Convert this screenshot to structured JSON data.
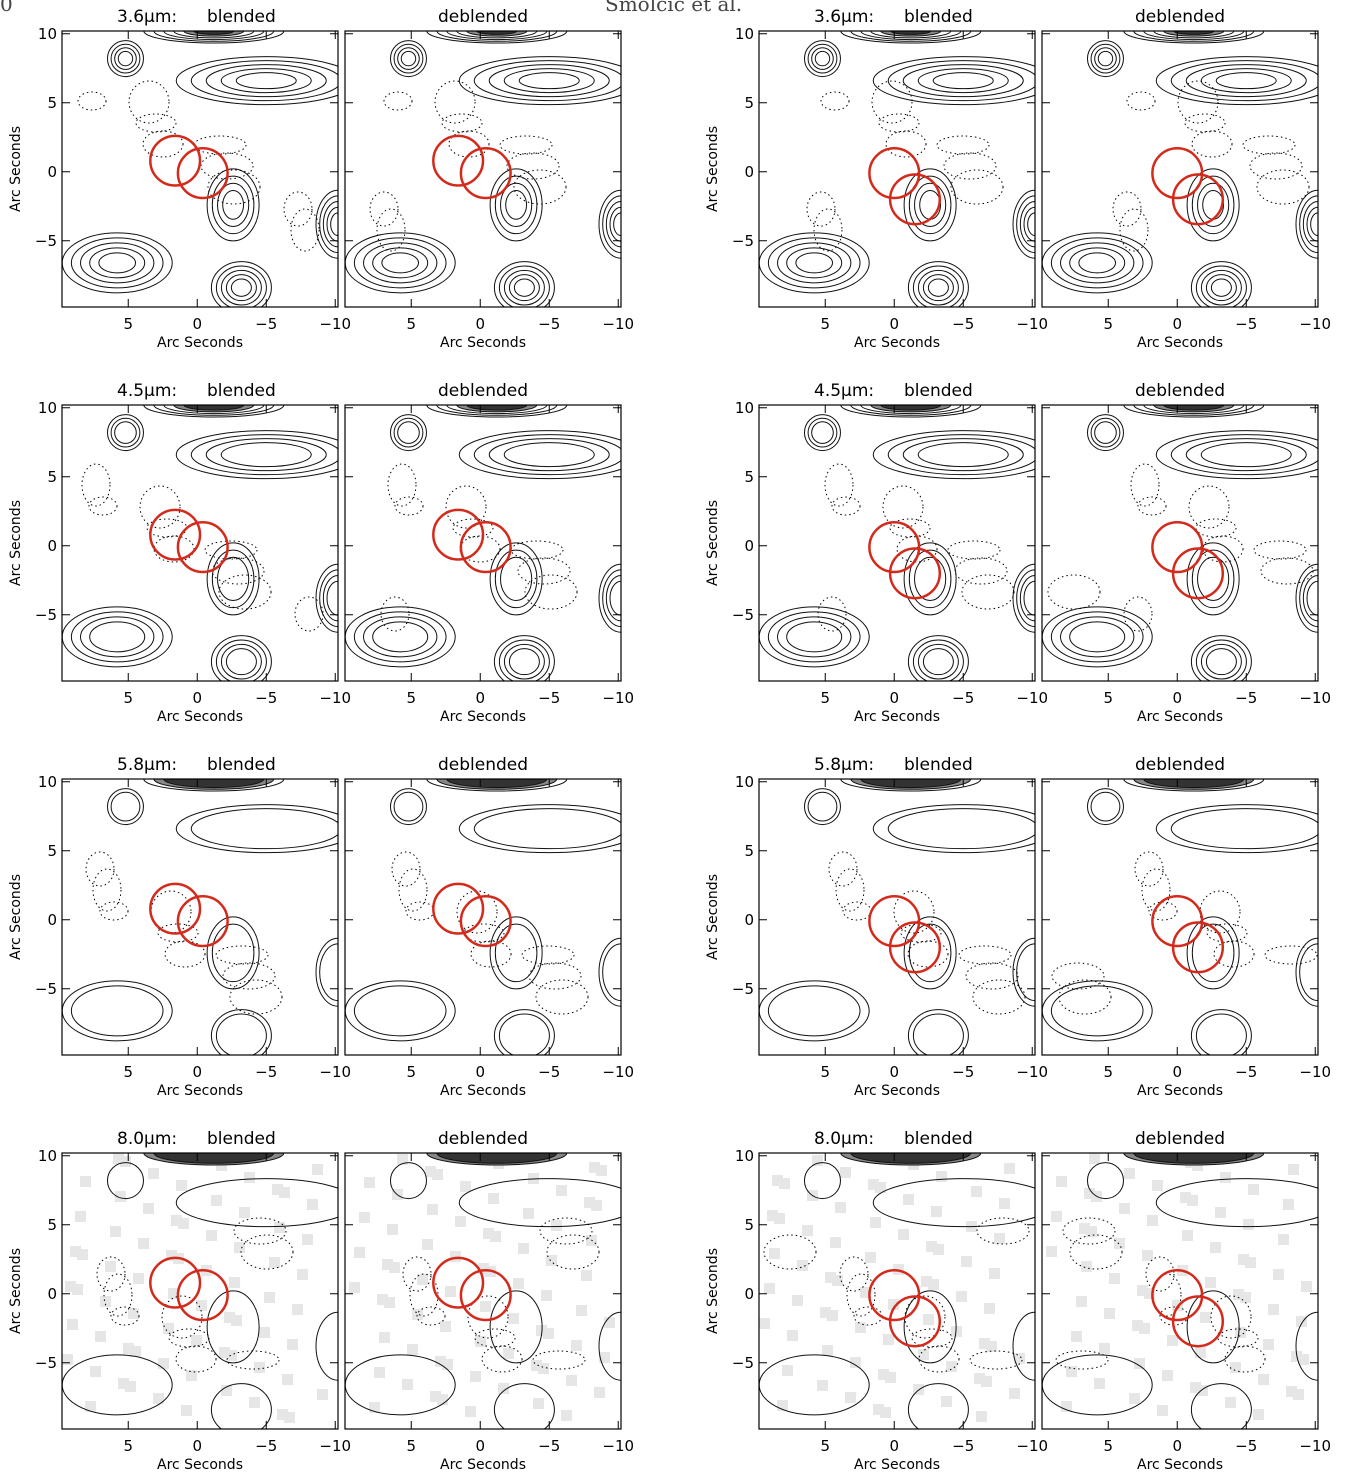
{
  "header": {
    "page_number": "0",
    "running_title": "Smolčić et al."
  },
  "axes": {
    "xlabel": "Arc Seconds",
    "ylabel": "Arc Seconds",
    "x_ticks": [
      "5",
      "0",
      "−5",
      "−10"
    ],
    "y_ticks": [
      "10",
      "5",
      "0",
      "−5"
    ],
    "x_range": [
      9.8,
      -10.2
    ],
    "y_range": [
      -9.8,
      10.2
    ]
  },
  "panel_labels": {
    "blended": "blended",
    "deblended": "deblended"
  },
  "bands": [
    {
      "label": "3.6μm:",
      "has_grey": false
    },
    {
      "label": "4.5μm:",
      "has_grey": false
    },
    {
      "label": "5.8μm:",
      "has_grey": false
    },
    {
      "label": "8.0μm:",
      "has_grey": true
    }
  ],
  "sources": {
    "left": [
      {
        "x": 1.6,
        "y": 0.8
      },
      {
        "x": -0.4,
        "y": -0.1
      }
    ],
    "right": [
      {
        "x": 0.0,
        "y": -0.1
      },
      {
        "x": -1.5,
        "y": -2.0
      }
    ]
  },
  "circle_radius_arcsec": 1.8,
  "colors": {
    "circle": "#d42a1c",
    "contour": "#111111",
    "grey": "#e6e6e6"
  }
}
